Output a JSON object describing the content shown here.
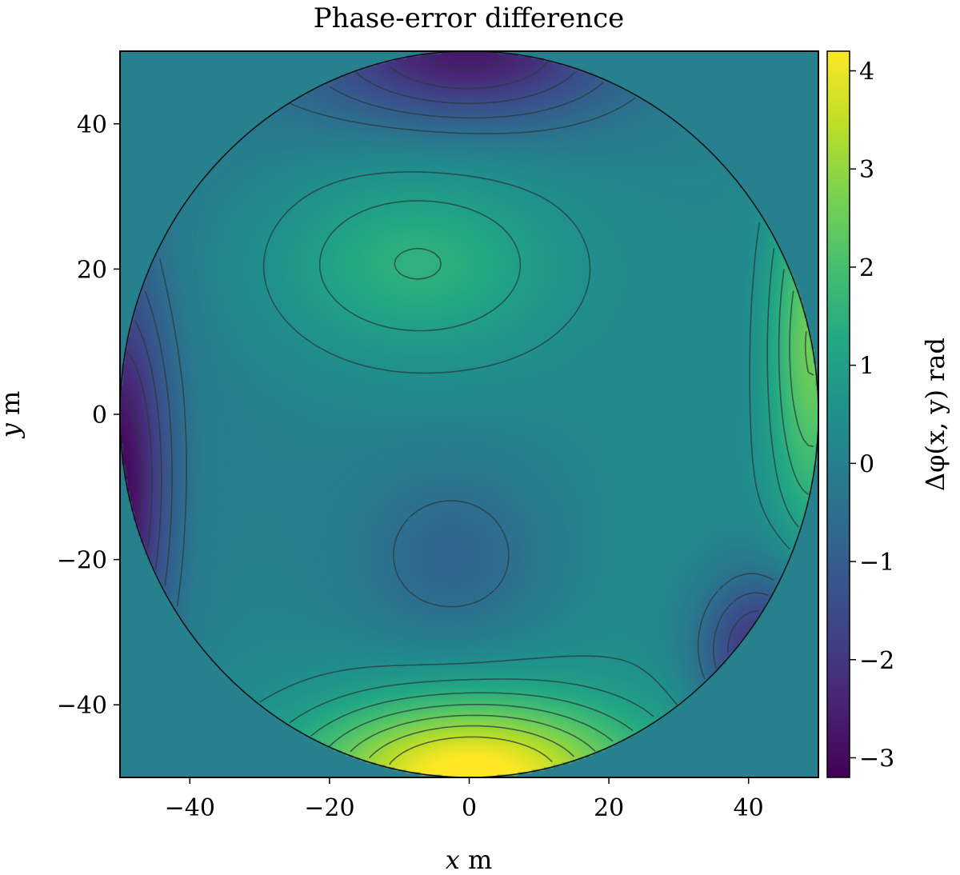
{
  "chart_data": {
    "type": "heatmap",
    "title": "Phase-error difference",
    "xlabel_var": "x",
    "xlabel_unit": " m",
    "ylabel_var": "y",
    "ylabel_unit": " m",
    "colorbar_label": "Δφ(x, y) rad",
    "colormap": "viridis",
    "xlim": [
      -50,
      50
    ],
    "ylim": [
      -50,
      50
    ],
    "aperture_radius": 50,
    "background_value": 0,
    "color_range": [
      -3.2,
      4.2
    ],
    "x_ticks": [
      {
        "value": -40,
        "label": "−40"
      },
      {
        "value": -20,
        "label": "−20"
      },
      {
        "value": 0,
        "label": "0"
      },
      {
        "value": 20,
        "label": "20"
      },
      {
        "value": 40,
        "label": "40"
      }
    ],
    "y_ticks": [
      {
        "value": -40,
        "label": "−40"
      },
      {
        "value": -20,
        "label": "−20"
      },
      {
        "value": 0,
        "label": "0"
      },
      {
        "value": 20,
        "label": "20"
      },
      {
        "value": 40,
        "label": "40"
      }
    ],
    "colorbar_ticks": [
      {
        "value": -3,
        "label": "−3"
      },
      {
        "value": -2,
        "label": "−2"
      },
      {
        "value": -1,
        "label": "−1"
      },
      {
        "value": 0,
        "label": "0"
      },
      {
        "value": 1,
        "label": "1"
      },
      {
        "value": 2,
        "label": "2"
      },
      {
        "value": 3,
        "label": "3"
      },
      {
        "value": 4,
        "label": "4"
      }
    ],
    "contour_levels": [
      -3,
      -2.5,
      -2,
      -1.5,
      -1,
      -0.5,
      0.5,
      1,
      1.5,
      2,
      2.5,
      3,
      3.5
    ],
    "negative_contours_dashed": true,
    "features": [
      {
        "kind": "max",
        "x": -8,
        "y": 21,
        "value": 1.55
      },
      {
        "kind": "min",
        "x": -2,
        "y": -20,
        "value": -0.95
      },
      {
        "kind": "max",
        "x": 0,
        "y": -50,
        "value": 4.2
      },
      {
        "kind": "min",
        "x": 0,
        "y": 50,
        "value": -2.6
      },
      {
        "kind": "min",
        "x": -50,
        "y": -10,
        "value": -3.0
      },
      {
        "kind": "max",
        "x": 49,
        "y": 10,
        "value": 2.3
      },
      {
        "kind": "min",
        "x": 42,
        "y": -33,
        "value": -2.6
      }
    ]
  }
}
